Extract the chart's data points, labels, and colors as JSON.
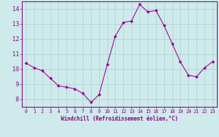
{
  "x": [
    0,
    1,
    2,
    3,
    4,
    5,
    6,
    7,
    8,
    9,
    10,
    11,
    12,
    13,
    14,
    15,
    16,
    17,
    18,
    19,
    20,
    21,
    22,
    23
  ],
  "y": [
    10.4,
    10.1,
    9.9,
    9.4,
    8.9,
    8.8,
    8.7,
    8.4,
    7.8,
    8.3,
    10.3,
    12.2,
    13.1,
    13.2,
    14.3,
    13.8,
    13.9,
    12.9,
    11.7,
    10.5,
    9.6,
    9.5,
    10.1,
    10.5
  ],
  "line_color": "#990099",
  "marker": "D",
  "marker_size": 2.0,
  "bg_color": "#ceeaea",
  "grid_color": "#aed4d4",
  "tick_color": "#880088",
  "label_color": "#880088",
  "xlabel": "Windchill (Refroidissement éolien,°C)",
  "ylim": [
    7.5,
    14.5
  ],
  "xlim": [
    -0.5,
    23.5
  ],
  "yticks": [
    8,
    9,
    10,
    11,
    12,
    13,
    14
  ],
  "xticks": [
    0,
    1,
    2,
    3,
    4,
    5,
    6,
    7,
    8,
    9,
    10,
    11,
    12,
    13,
    14,
    15,
    16,
    17,
    18,
    19,
    20,
    21,
    22,
    23
  ]
}
